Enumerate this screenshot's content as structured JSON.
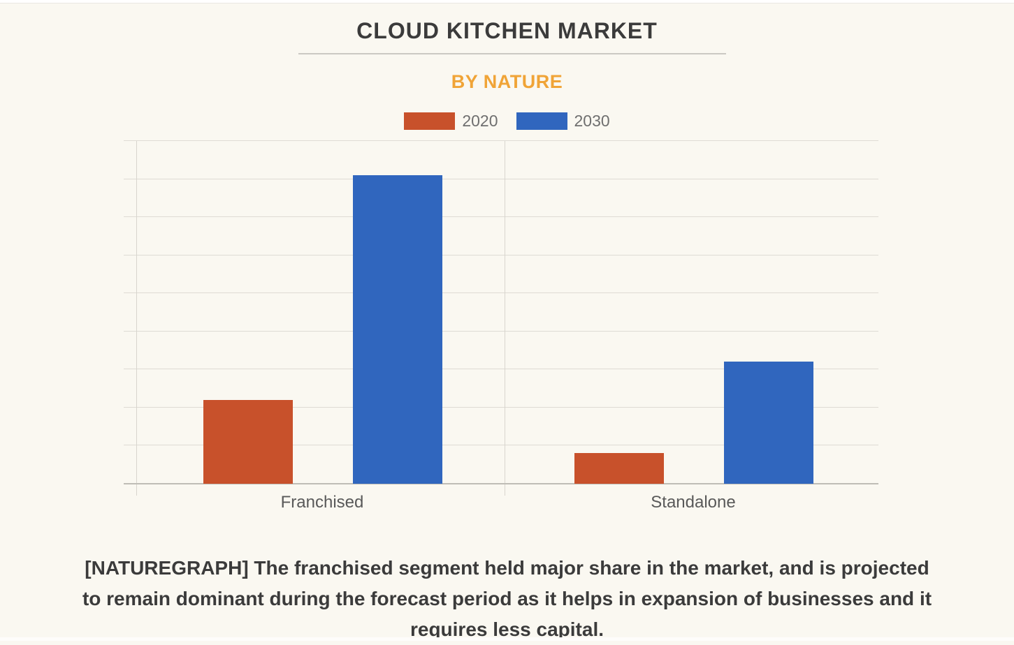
{
  "page": {
    "background_color": "#FAF8F1"
  },
  "header": {
    "title": "CLOUD KITCHEN MARKET",
    "subtitle": "BY NATURE"
  },
  "legend": {
    "items": [
      {
        "label": "2020",
        "color": "#C8512B"
      },
      {
        "label": "2030",
        "color": "#3066BE"
      }
    ]
  },
  "chart_data": {
    "type": "bar",
    "title": "CLOUD KITCHEN MARKET",
    "subtitle": "BY NATURE",
    "categories": [
      "Franchised",
      "Standalone"
    ],
    "series": [
      {
        "name": "2020",
        "color": "#C8512B",
        "values": [
          2.2,
          0.8
        ]
      },
      {
        "name": "2030",
        "color": "#3066BE",
        "values": [
          8.1,
          3.2
        ]
      }
    ],
    "xlabel": "",
    "ylabel": "",
    "ylim": [
      0,
      9
    ],
    "y_tick_interval": 1,
    "y_tick_labels_shown": false,
    "grid": "horizontal",
    "legend_position": "top-center"
  },
  "caption": {
    "lines": [
      "[NATUREGRAPH] The franchised segment held major share in the market, and is projected",
      "to remain dominant during the forecast period as it helps in expansion of businesses and it",
      "requires less capital."
    ]
  }
}
